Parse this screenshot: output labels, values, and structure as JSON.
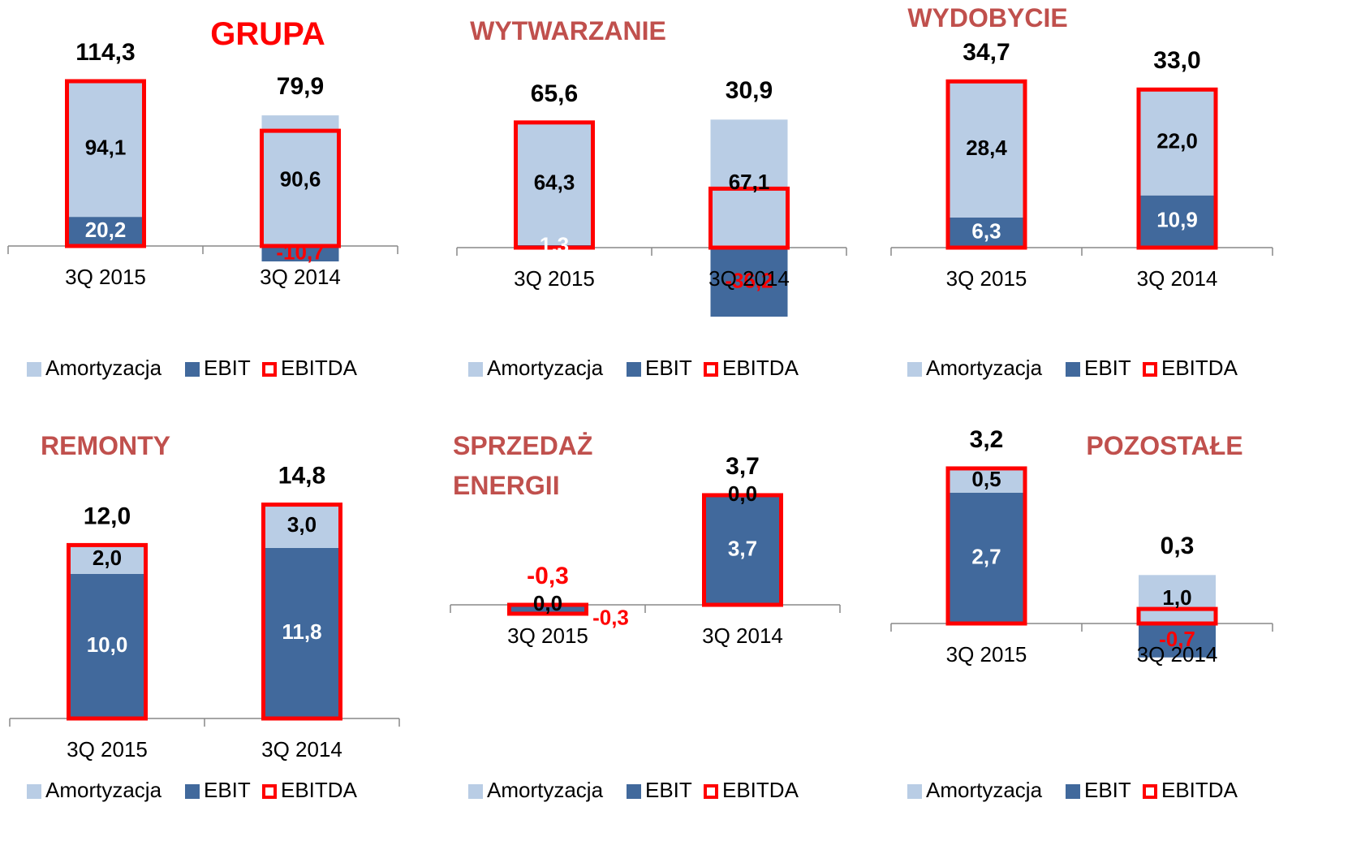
{
  "chart_data": [
    {
      "type": "bar",
      "title": "GRUPA",
      "title_color": "#ff0000",
      "categories": [
        "3Q 2015",
        "3Q 2014"
      ],
      "series": [
        {
          "name": "Amortyzacja",
          "color": "#b9cde5",
          "values": [
            94.1,
            90.6
          ],
          "value_labels": [
            "94,1",
            "90,6"
          ]
        },
        {
          "name": "EBIT",
          "color": "#41699c",
          "values": [
            20.2,
            -10.7
          ],
          "value_labels": [
            "20,2",
            "-10,7"
          ]
        },
        {
          "name": "EBITDA",
          "color": "#ff0000",
          "values": [
            114.3,
            79.9
          ],
          "value_labels": [
            "114,3",
            "79,9"
          ]
        }
      ]
    },
    {
      "type": "bar",
      "title": "WYTWARZANIE",
      "title_color": "#c0504d",
      "categories": [
        "3Q 2015",
        "3Q 2014"
      ],
      "series": [
        {
          "name": "Amortyzacja",
          "color": "#b9cde5",
          "values": [
            64.3,
            67.1
          ],
          "value_labels": [
            "64,3",
            "67,1"
          ]
        },
        {
          "name": "EBIT",
          "color": "#41699c",
          "values": [
            1.3,
            -36.2
          ],
          "value_labels": [
            "1,3",
            "-36,2"
          ]
        },
        {
          "name": "EBITDA",
          "color": "#ff0000",
          "values": [
            65.6,
            30.9
          ],
          "value_labels": [
            "65,6",
            "30,9"
          ]
        }
      ]
    },
    {
      "type": "bar",
      "title": "WYDOBYCIE",
      "title_color": "#c0504d",
      "categories": [
        "3Q 2015",
        "3Q 2014"
      ],
      "series": [
        {
          "name": "Amortyzacja",
          "color": "#b9cde5",
          "values": [
            28.4,
            22.0
          ],
          "value_labels": [
            "28,4",
            "22,0"
          ]
        },
        {
          "name": "EBIT",
          "color": "#41699c",
          "values": [
            6.3,
            10.9
          ],
          "value_labels": [
            "6,3",
            "10,9"
          ]
        },
        {
          "name": "EBITDA",
          "color": "#ff0000",
          "values": [
            34.7,
            33.0
          ],
          "value_labels": [
            "34,7",
            "33,0"
          ]
        }
      ]
    },
    {
      "type": "bar",
      "title": "REMONTY",
      "title_color": "#c0504d",
      "categories": [
        "3Q 2015",
        "3Q 2014"
      ],
      "series": [
        {
          "name": "Amortyzacja",
          "color": "#b9cde5",
          "values": [
            2.0,
            3.0
          ],
          "value_labels": [
            "2,0",
            "3,0"
          ]
        },
        {
          "name": "EBIT",
          "color": "#41699c",
          "values": [
            10.0,
            11.8
          ],
          "value_labels": [
            "10,0",
            "11,8"
          ]
        },
        {
          "name": "EBITDA",
          "color": "#ff0000",
          "values": [
            12.0,
            14.8
          ],
          "value_labels": [
            "12,0",
            "14,8"
          ]
        }
      ]
    },
    {
      "type": "bar",
      "title": "SPRZEDAŻ ENERGII",
      "title_color": "#c0504d",
      "categories": [
        "3Q 2015",
        "3Q 2014"
      ],
      "series": [
        {
          "name": "Amortyzacja",
          "color": "#b9cde5",
          "values": [
            0.0,
            0.0
          ],
          "value_labels": [
            "0,0",
            "0,0"
          ]
        },
        {
          "name": "EBIT",
          "color": "#41699c",
          "values": [
            -0.3,
            3.7
          ],
          "value_labels": [
            "-0,3",
            "3,7"
          ]
        },
        {
          "name": "EBITDA",
          "color": "#ff0000",
          "values": [
            -0.3,
            3.7
          ],
          "value_labels": [
            "-0,3",
            "3,7"
          ]
        }
      ]
    },
    {
      "type": "bar",
      "title": "POZOSTAŁE",
      "title_color": "#c0504d",
      "categories": [
        "3Q 2015",
        "3Q 2014"
      ],
      "series": [
        {
          "name": "Amortyzacja",
          "color": "#b9cde5",
          "values": [
            0.5,
            1.0
          ],
          "value_labels": [
            "0,5",
            "1,0"
          ]
        },
        {
          "name": "EBIT",
          "color": "#41699c",
          "values": [
            2.7,
            -0.7
          ],
          "value_labels": [
            "2,7",
            "-0,7"
          ]
        },
        {
          "name": "EBITDA",
          "color": "#ff0000",
          "values": [
            3.2,
            0.3
          ],
          "value_labels": [
            "3,2",
            "0,3"
          ]
        }
      ]
    }
  ]
}
